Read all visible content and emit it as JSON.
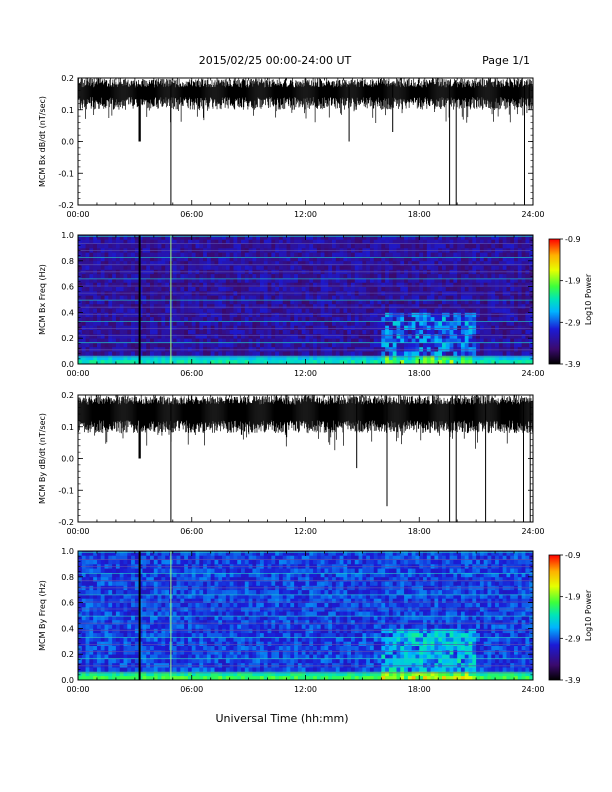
{
  "header": {
    "title": "2015/02/25  00:00-24:00 UT",
    "page": "Page 1/1"
  },
  "footer": {
    "xlabel": "Universal Time (hh:mm)"
  },
  "colors": {
    "trace": "#000000",
    "colormap": [
      "#000000",
      "#3b0a6e",
      "#1b1bd6",
      "#00b4ff",
      "#00e5b8",
      "#3cff3c",
      "#e6ff00",
      "#ffb000",
      "#ff0000"
    ]
  },
  "chart_data": [
    {
      "type": "line",
      "ylabel": "MCM Bx dB/dt (nT/sec)",
      "x_ticks": [
        "00:00",
        "06:00",
        "12:00",
        "18:00",
        "24:00"
      ],
      "xlim_hours": [
        0,
        24
      ],
      "y_ticks": [
        "0.2",
        "0.1",
        "0.0",
        "-0.1",
        "-0.2"
      ],
      "ylim": [
        -0.2,
        0.2
      ],
      "baseline_band": [
        0.12,
        0.2
      ],
      "spikes": [
        {
          "t": 3.25,
          "y": 0.0,
          "w": 0.12
        },
        {
          "t": 4.9,
          "y": -0.2,
          "w": 0.03
        },
        {
          "t": 14.3,
          "y": 0.0,
          "w": 0.03
        },
        {
          "t": 16.6,
          "y": 0.03,
          "w": 0.03
        },
        {
          "t": 19.6,
          "y": -0.2,
          "w": 0.05
        },
        {
          "t": 19.95,
          "y": -0.2,
          "w": 0.05
        },
        {
          "t": 23.55,
          "y": -0.2,
          "w": 0.03
        },
        {
          "t": 23.8,
          "y": 0.1,
          "w": 0.03
        }
      ]
    },
    {
      "type": "heatmap",
      "ylabel": "MCM Bx Freq (Hz)",
      "x_ticks": [
        "00:00",
        "06:00",
        "12:00",
        "18:00",
        "24:00"
      ],
      "xlim_hours": [
        0,
        24
      ],
      "y_ticks": [
        "1.0",
        "0.8",
        "0.6",
        "0.4",
        "0.2",
        "0.0"
      ],
      "ylim": [
        0,
        1.0
      ],
      "colorbar": {
        "label": "Log10 Power",
        "ticks": [
          "-0.9",
          "-1.9",
          "-2.9",
          "-3.9"
        ],
        "range": [
          -3.9,
          -0.9
        ]
      },
      "active_window_hours": [
        16,
        21
      ],
      "vertical_lines_hours": [
        3.25,
        4.9
      ]
    },
    {
      "type": "line",
      "ylabel": "MCM By dB/dt (nT/sec)",
      "x_ticks": [
        "00:00",
        "06:00",
        "12:00",
        "18:00",
        "24:00"
      ],
      "xlim_hours": [
        0,
        24
      ],
      "y_ticks": [
        "0.2",
        "0.1",
        "0.0",
        "-0.1",
        "-0.2"
      ],
      "ylim": [
        -0.2,
        0.2
      ],
      "baseline_band": [
        0.1,
        0.2
      ],
      "spikes": [
        {
          "t": 3.25,
          "y": 0.0,
          "w": 0.12
        },
        {
          "t": 4.9,
          "y": -0.2,
          "w": 0.03
        },
        {
          "t": 14.7,
          "y": -0.03,
          "w": 0.03
        },
        {
          "t": 16.3,
          "y": -0.15,
          "w": 0.03
        },
        {
          "t": 19.6,
          "y": -0.2,
          "w": 0.05
        },
        {
          "t": 19.95,
          "y": -0.2,
          "w": 0.05
        },
        {
          "t": 21.5,
          "y": -0.2,
          "w": 0.04
        },
        {
          "t": 23.5,
          "y": -0.2,
          "w": 0.03
        },
        {
          "t": 23.85,
          "y": -0.2,
          "w": 0.03
        }
      ]
    },
    {
      "type": "heatmap",
      "ylabel": "MCM By Freq (Hz)",
      "x_ticks": [
        "00:00",
        "06:00",
        "12:00",
        "18:00",
        "24:00"
      ],
      "xlim_hours": [
        0,
        24
      ],
      "y_ticks": [
        "1.0",
        "0.8",
        "0.6",
        "0.4",
        "0.2",
        "0.0"
      ],
      "ylim": [
        0,
        1.0
      ],
      "colorbar": {
        "label": "Log10 Power",
        "ticks": [
          "-0.9",
          "-1.9",
          "-2.9",
          "-3.9"
        ],
        "range": [
          -3.9,
          -0.9
        ]
      },
      "active_window_hours": [
        16,
        21
      ],
      "vertical_lines_hours": [
        3.25,
        4.9
      ]
    }
  ]
}
